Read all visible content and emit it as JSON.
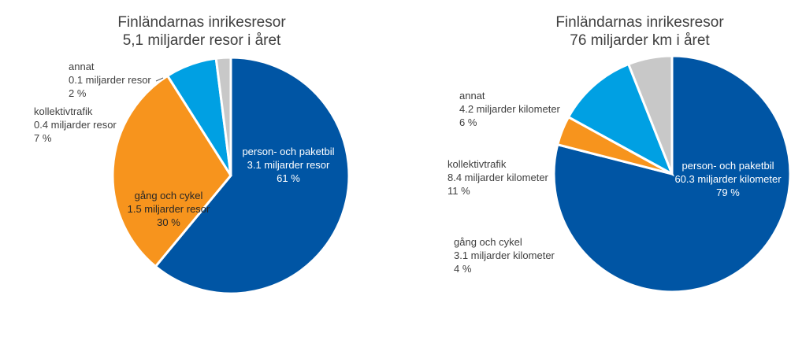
{
  "chart_data": [
    {
      "type": "pie",
      "title": "Finländarnas inrikesresor",
      "subtitle": "5,1 miljarder resor i året",
      "slices": [
        {
          "label": "person- och paketbil",
          "value_text": "3.1 miljarder resor",
          "pct_text": "61 %",
          "value": 61,
          "color": "#0055A4"
        },
        {
          "label": "gång och cykel",
          "value_text": "1.5 miljarder resor",
          "pct_text": "30 %",
          "value": 30,
          "color": "#F7941D"
        },
        {
          "label": "kollektivtrafik",
          "value_text": "0.4 miljarder resor",
          "pct_text": "7 %",
          "value": 7,
          "color": "#00A0E3"
        },
        {
          "label": "annat",
          "value_text": "0.1 miljarder resor",
          "pct_text": "2 %",
          "value": 2,
          "color": "#C8C8C8"
        }
      ]
    },
    {
      "type": "pie",
      "title": "Finländarnas inrikesresor",
      "subtitle": "76 miljarder km i året",
      "slices": [
        {
          "label": "person- och paketbil",
          "value_text": "60.3 miljarder kilometer",
          "pct_text": "79 %",
          "value": 79,
          "color": "#0055A4"
        },
        {
          "label": "gång och cykel",
          "value_text": "3.1 miljarder kilometer",
          "pct_text": "4 %",
          "value": 4,
          "color": "#F7941D"
        },
        {
          "label": "kollektivtrafik",
          "value_text": "8.4 miljarder kilometer",
          "pct_text": "11 %",
          "value": 11,
          "color": "#00A0E3"
        },
        {
          "label": "annat",
          "value_text": "4.2 miljarder kilometer",
          "pct_text": "6 %",
          "value": 6,
          "color": "#C8C8C8"
        }
      ]
    }
  ]
}
